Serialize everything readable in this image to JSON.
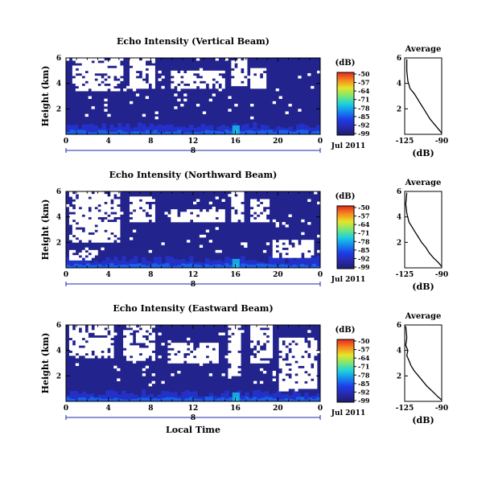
{
  "chart_data": [
    {
      "type": "heatmap",
      "title": "Echo Intensity (Vertical Beam)",
      "ylabel": "Height (km)",
      "y_ticks": [
        "6",
        "4",
        "2"
      ],
      "x_ticks": [
        "0",
        "4",
        "8",
        "12",
        "16",
        "20",
        "0"
      ],
      "x_date_tick": "8",
      "date_label": "Jul 2011",
      "xlim_hours": [
        0,
        24
      ],
      "ylim_km": [
        0,
        6
      ],
      "colorbar": {
        "unit": "(dB)",
        "ticks": [
          "-50",
          "-57",
          "-64",
          "-71",
          "-78",
          "-85",
          "-92",
          "-99"
        ],
        "range": [
          -99,
          -50
        ]
      },
      "missing_color": "#ffffff",
      "background_level_db": -96,
      "description_blobs": [
        {
          "x0": 0.5,
          "x1": 5.5,
          "y0": 4.0,
          "y1": 5.9
        },
        {
          "x0": 6.0,
          "x1": 8.5,
          "y0": 3.7,
          "y1": 5.9
        },
        {
          "x0": 10.0,
          "x1": 15.0,
          "y0": 3.7,
          "y1": 4.9
        },
        {
          "x0": 15.5,
          "x1": 17.0,
          "y0": 3.8,
          "y1": 5.9
        },
        {
          "x0": 17.5,
          "x1": 19.0,
          "y0": 3.7,
          "y1": 5.3
        },
        {
          "x0": 1.0,
          "x1": 5.0,
          "y0": 3.4,
          "y1": 4.2
        }
      ],
      "average_profile": {
        "title": "Average",
        "xlabel": "(dB)",
        "x_ticks": [
          "-125",
          "-90"
        ],
        "y_ticks": [
          "6",
          "4",
          "2"
        ],
        "xlim": [
          -125,
          -90
        ],
        "ylim": [
          0,
          6
        ],
        "points": [
          [
            -90,
            0.1
          ],
          [
            -93,
            0.4
          ],
          [
            -97,
            0.8
          ],
          [
            -101,
            1.2
          ],
          [
            -104,
            1.6
          ],
          [
            -107,
            2.0
          ],
          [
            -110,
            2.4
          ],
          [
            -113,
            2.8
          ],
          [
            -116,
            3.2
          ],
          [
            -120,
            3.6
          ],
          [
            -122,
            4.2
          ],
          [
            -123,
            5.0
          ],
          [
            -123,
            5.9
          ]
        ]
      }
    },
    {
      "type": "heatmap",
      "title": "Echo Intensity (Northward Beam)",
      "ylabel": "Height (km)",
      "y_ticks": [
        "6",
        "4",
        "2"
      ],
      "x_ticks": [
        "0",
        "4",
        "8",
        "12",
        "16",
        "20",
        "0"
      ],
      "x_date_tick": "8",
      "date_label": "Jul 2011",
      "xlim_hours": [
        0,
        24
      ],
      "ylim_km": [
        0,
        6
      ],
      "colorbar": {
        "unit": "(dB)",
        "ticks": [
          "-50",
          "-57",
          "-64",
          "-71",
          "-78",
          "-85",
          "-92",
          "-99"
        ],
        "range": [
          -99,
          -50
        ]
      },
      "missing_color": "#ffffff",
      "background_level_db": -96,
      "description_blobs": [
        {
          "x0": 0.4,
          "x1": 5.2,
          "y0": 2.0,
          "y1": 5.9
        },
        {
          "x0": 6.0,
          "x1": 8.3,
          "y0": 3.6,
          "y1": 5.6
        },
        {
          "x0": 10.0,
          "x1": 15.0,
          "y0": 3.6,
          "y1": 4.5
        },
        {
          "x0": 15.5,
          "x1": 16.8,
          "y0": 3.6,
          "y1": 5.9
        },
        {
          "x0": 17.5,
          "x1": 19.2,
          "y0": 3.7,
          "y1": 5.4
        },
        {
          "x0": 0.3,
          "x1": 3.0,
          "y0": 0.7,
          "y1": 1.4
        },
        {
          "x0": 19.5,
          "x1": 23.5,
          "y0": 0.8,
          "y1": 2.2
        }
      ],
      "average_profile": {
        "title": "Average",
        "xlabel": "(dB)",
        "x_ticks": [
          "-125",
          "-90"
        ],
        "y_ticks": [
          "6",
          "4",
          "2"
        ],
        "xlim": [
          -125,
          -90
        ],
        "ylim": [
          0,
          6
        ],
        "points": [
          [
            -90,
            0.1
          ],
          [
            -93,
            0.4
          ],
          [
            -98,
            0.8
          ],
          [
            -102,
            1.2
          ],
          [
            -105,
            1.6
          ],
          [
            -109,
            2.0
          ],
          [
            -112,
            2.4
          ],
          [
            -115,
            2.8
          ],
          [
            -118,
            3.2
          ],
          [
            -121,
            3.6
          ],
          [
            -123,
            4.3
          ],
          [
            -124,
            5.0
          ],
          [
            -123,
            5.9
          ]
        ]
      }
    },
    {
      "type": "heatmap",
      "title": "Echo Intensity (Eastward Beam)",
      "ylabel": "Height (km)",
      "xlabel": "Local Time",
      "y_ticks": [
        "6",
        "4",
        "2"
      ],
      "x_ticks": [
        "0",
        "4",
        "8",
        "12",
        "16",
        "20",
        "0"
      ],
      "x_date_tick": "8",
      "date_label": "Jul 2011",
      "xlim_hours": [
        0,
        24
      ],
      "ylim_km": [
        0,
        6
      ],
      "colorbar": {
        "unit": "(dB)",
        "ticks": [
          "-50",
          "-57",
          "-64",
          "-71",
          "-78",
          "-85",
          "-92",
          "-99"
        ],
        "range": [
          -99,
          -50
        ]
      },
      "missing_color": "#ffffff",
      "background_level_db": -96,
      "description_blobs": [
        {
          "x0": 0.3,
          "x1": 4.5,
          "y0": 3.5,
          "y1": 5.9
        },
        {
          "x0": 5.5,
          "x1": 8.5,
          "y0": 3.2,
          "y1": 5.9
        },
        {
          "x0": 9.5,
          "x1": 14.5,
          "y0": 3.0,
          "y1": 4.5
        },
        {
          "x0": 15.2,
          "x1": 16.5,
          "y0": 2.0,
          "y1": 5.9
        },
        {
          "x0": 17.5,
          "x1": 19.5,
          "y0": 3.0,
          "y1": 5.9
        },
        {
          "x0": 20.0,
          "x1": 23.8,
          "y0": 0.8,
          "y1": 5.0
        }
      ],
      "average_profile": {
        "title": "Average",
        "xlabel": "(dB)",
        "x_ticks": [
          "-125",
          "-90"
        ],
        "y_ticks": [
          "6",
          "4",
          "2"
        ],
        "xlim": [
          -125,
          -90
        ],
        "ylim": [
          0,
          6
        ],
        "points": [
          [
            -90,
            0.1
          ],
          [
            -94,
            0.4
          ],
          [
            -99,
            0.8
          ],
          [
            -104,
            1.2
          ],
          [
            -108,
            1.6
          ],
          [
            -112,
            2.0
          ],
          [
            -116,
            2.4
          ],
          [
            -119,
            2.8
          ],
          [
            -121,
            3.2
          ],
          [
            -123,
            3.6
          ],
          [
            -122,
            4.0
          ],
          [
            -124,
            4.4
          ],
          [
            -123,
            5.0
          ],
          [
            -124,
            5.9
          ]
        ]
      }
    }
  ]
}
